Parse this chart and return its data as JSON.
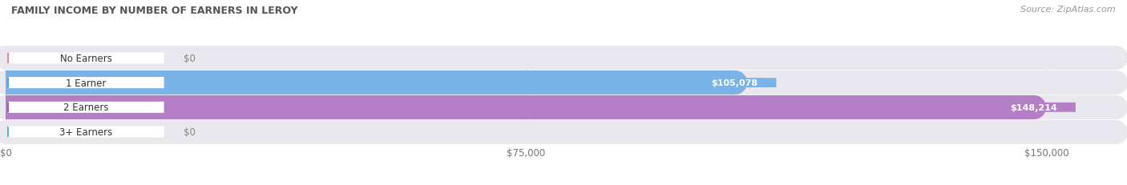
{
  "title": "FAMILY INCOME BY NUMBER OF EARNERS IN LEROY",
  "source": "Source: ZipAtlas.com",
  "categories": [
    "No Earners",
    "1 Earner",
    "2 Earners",
    "3+ Earners"
  ],
  "values": [
    0,
    105078,
    148214,
    0
  ],
  "bar_colors": [
    "#f2a8a8",
    "#7ab3e8",
    "#b57fc8",
    "#72cdc5"
  ],
  "label_dot_colors": [
    "#e88888",
    "#5a9fd4",
    "#9b5fb5",
    "#52bdb5"
  ],
  "bar_bg_color": "#e8e8ee",
  "bg_color": "#ffffff",
  "title_color": "#555555",
  "source_color": "#999999",
  "grid_color": "#dddddd",
  "value_text_color": "#ffffff",
  "zero_text_color": "#888888",
  "xlim_max": 160000,
  "xtick_vals": [
    0,
    75000,
    150000
  ],
  "xticklabels": [
    "$0",
    "$75,000",
    "$150,000"
  ],
  "figsize": [
    14.06,
    2.32
  ],
  "dpi": 100
}
